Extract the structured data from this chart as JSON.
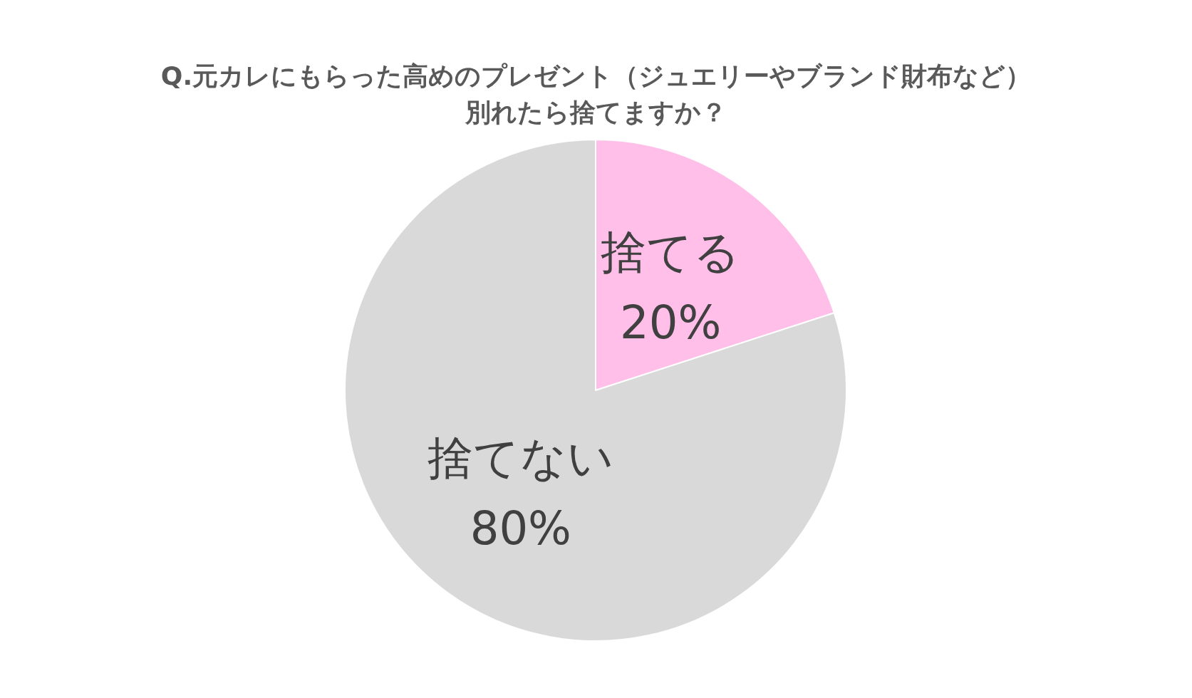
{
  "chart_data": {
    "type": "pie",
    "title": "Q.元カレにもらった高めのプレゼント（ジュエリーやブランド財布など）別れたら捨てますか？",
    "categories": [
      "捨てる",
      "捨てない"
    ],
    "values": [
      20,
      80
    ],
    "colors": [
      "#ffbfe8",
      "#d9d9d9"
    ],
    "value_labels": [
      "20%",
      "80%"
    ],
    "legend": false
  }
}
